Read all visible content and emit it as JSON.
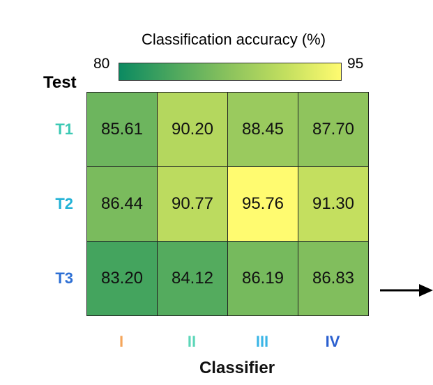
{
  "chart_data": {
    "type": "heatmap",
    "colorbar": {
      "title": "Classification accuracy (%)",
      "min": 80,
      "max": 95,
      "min_label": "80",
      "max_label": "95",
      "colors": [
        "#0b8a61",
        "#4ea85e",
        "#8cc35d",
        "#c3df5f",
        "#fffb70"
      ]
    },
    "ylabel": "Test",
    "xlabel": "Classifier",
    "rows": [
      {
        "label": "T1",
        "color": "#3cc9b4"
      },
      {
        "label": "T2",
        "color": "#22b2d6"
      },
      {
        "label": "T3",
        "color": "#2d6fd4"
      }
    ],
    "columns": [
      {
        "label": "I",
        "color": "#f5a55a"
      },
      {
        "label": "II",
        "color": "#5bd6b8"
      },
      {
        "label": "III",
        "color": "#3ab5e6"
      },
      {
        "label": "IV",
        "color": "#2a5fcf"
      }
    ],
    "values": [
      [
        85.61,
        90.2,
        88.45,
        87.7
      ],
      [
        86.44,
        90.77,
        95.76,
        91.3
      ],
      [
        83.2,
        84.12,
        86.19,
        86.83
      ]
    ],
    "value_labels": [
      [
        "85.61",
        "90.20",
        "88.45",
        "87.70"
      ],
      [
        "86.44",
        "90.77",
        "95.76",
        "91.30"
      ],
      [
        "83.20",
        "84.12",
        "86.19",
        "86.83"
      ]
    ]
  }
}
